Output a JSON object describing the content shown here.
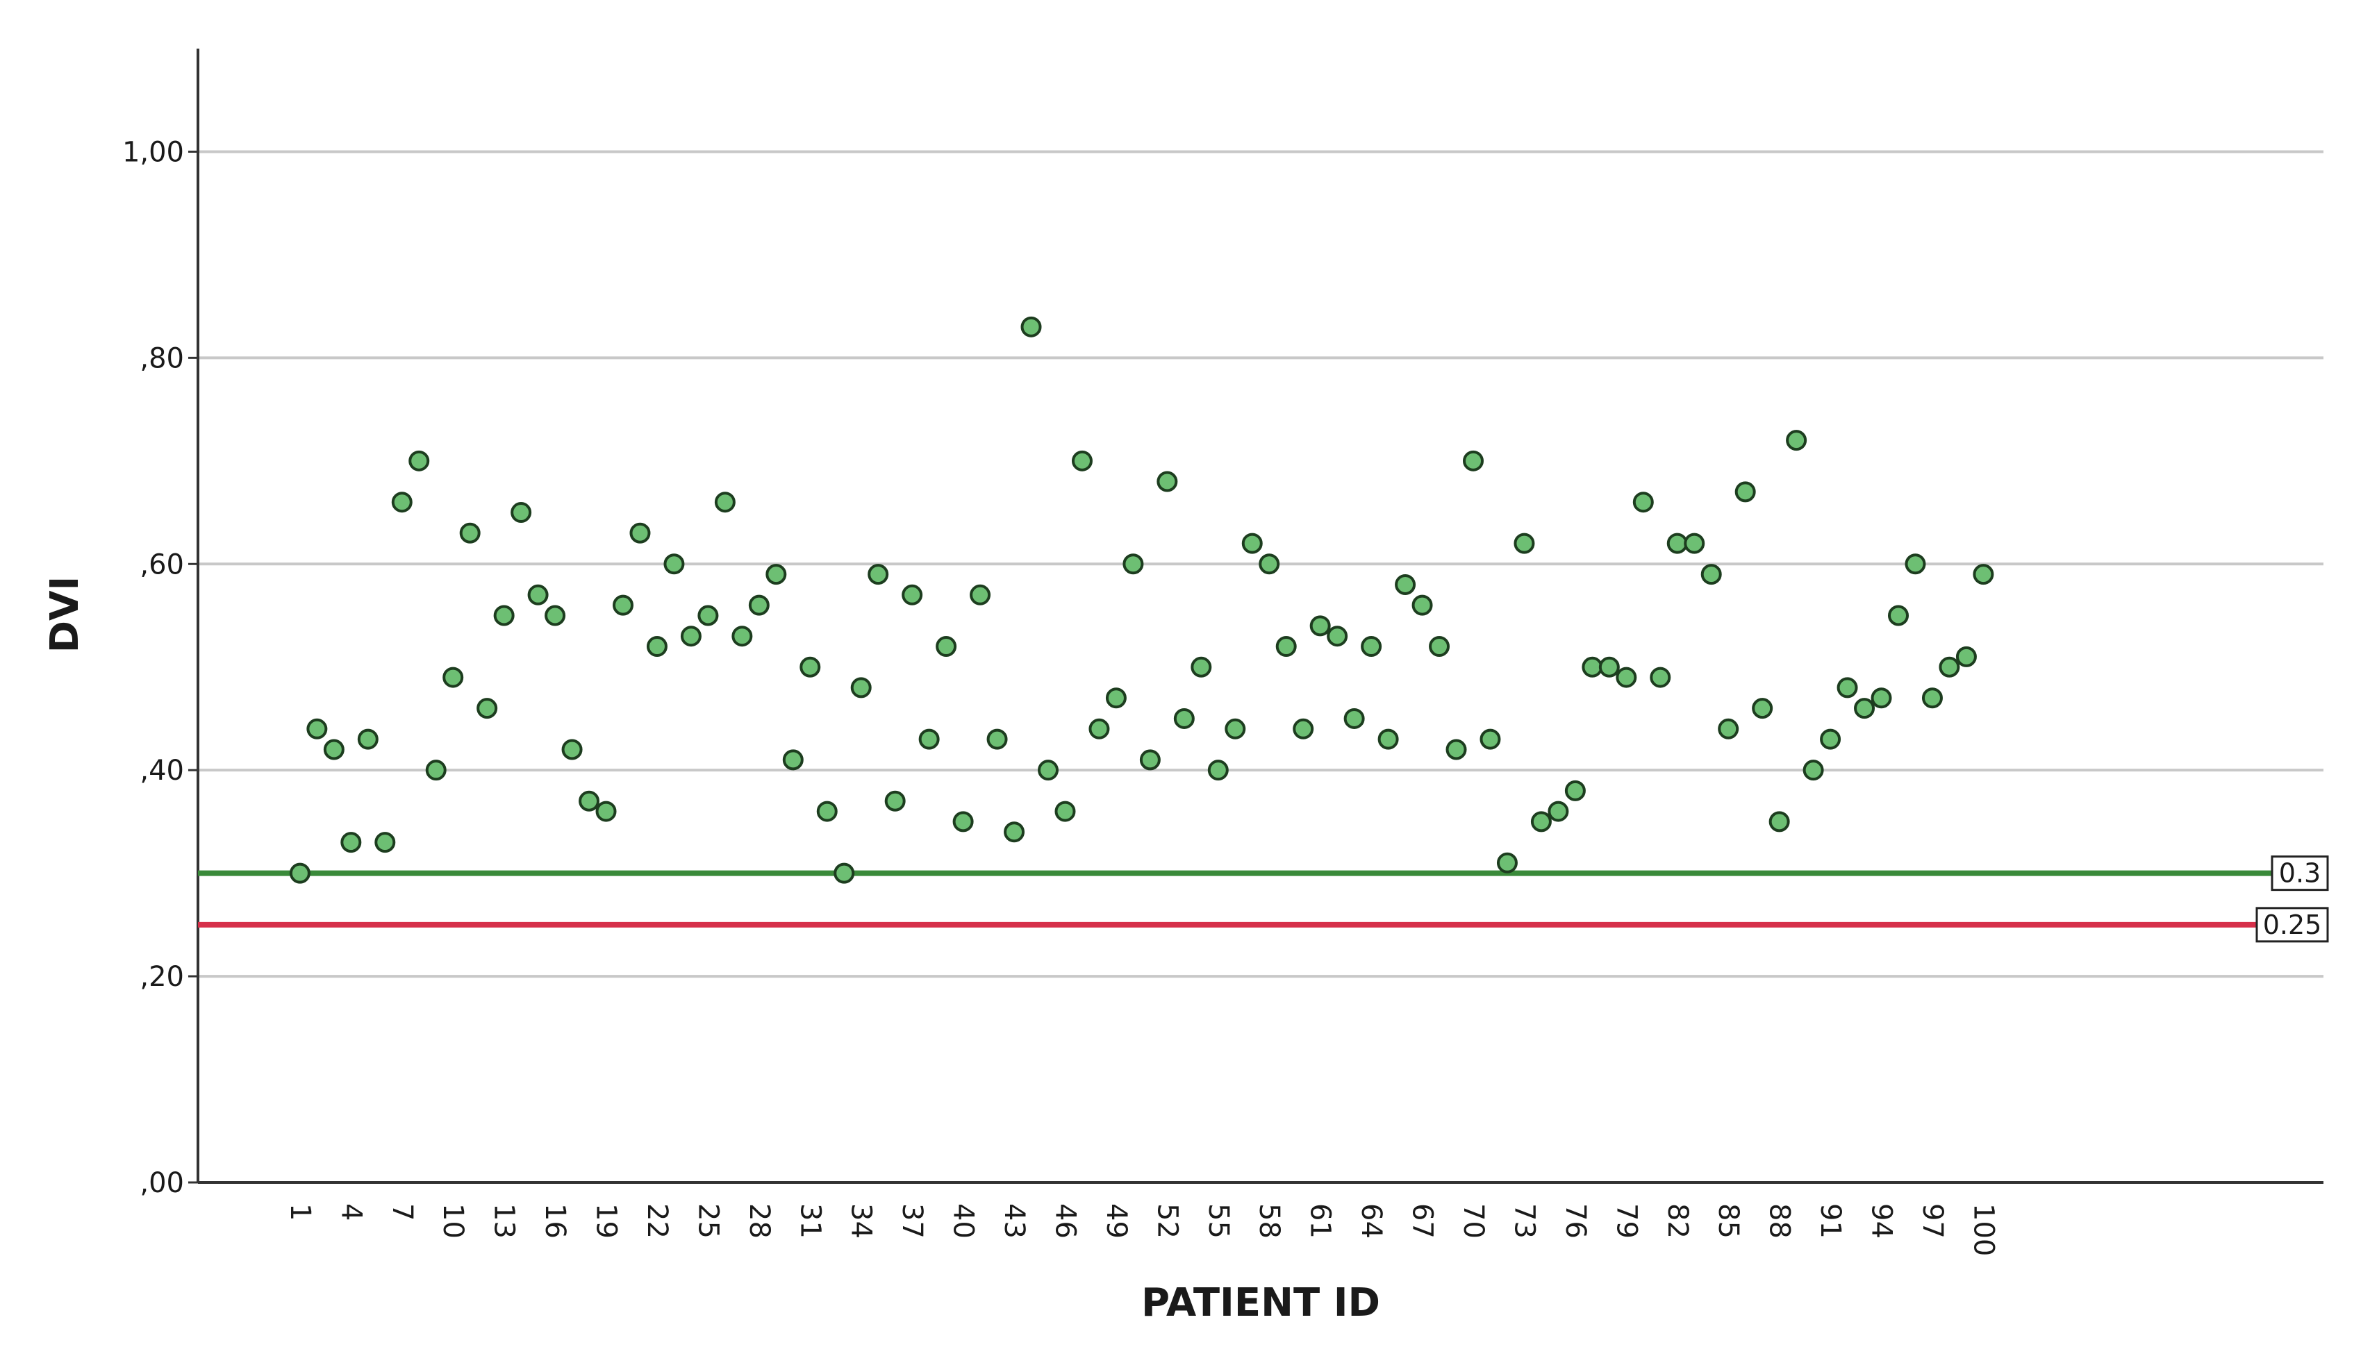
{
  "chart_data": {
    "type": "scatter",
    "xlabel": "PATIENT ID",
    "ylabel": "DVI",
    "ylim": [
      0,
      1.1
    ],
    "xlim": [
      -5,
      120
    ],
    "yticks": [
      {
        "value": 0.0,
        "label": ",00"
      },
      {
        "value": 0.2,
        "label": ",20"
      },
      {
        "value": 0.4,
        "label": ",40"
      },
      {
        "value": 0.6,
        "label": ",60"
      },
      {
        "value": 0.8,
        "label": ",80"
      },
      {
        "value": 1.0,
        "label": "1,00"
      }
    ],
    "xtick_step": 3,
    "xtick_labels": [
      "1",
      "4",
      "7",
      "10",
      "13",
      "16",
      "19",
      "22",
      "25",
      "28",
      "31",
      "34",
      "37",
      "40",
      "43",
      "46",
      "49",
      "52",
      "55",
      "58",
      "61",
      "64",
      "67",
      "70",
      "73",
      "76",
      "79",
      "82",
      "85",
      "88",
      "91",
      "94",
      "97",
      "100"
    ],
    "grid": "horizontal",
    "marker_color": "#6dbf73",
    "marker_edge_color": "#1d3d1f",
    "reference_lines": [
      {
        "value": 0.3,
        "label": "0.3",
        "color": "#3a8a3a"
      },
      {
        "value": 0.25,
        "label": "0.25",
        "color": "#d6304a"
      }
    ],
    "series": [
      {
        "points": [
          [
            1,
            0.3
          ],
          [
            2,
            0.44
          ],
          [
            3,
            0.42
          ],
          [
            4,
            0.33
          ],
          [
            5,
            0.43
          ],
          [
            6,
            0.33
          ],
          [
            7,
            0.66
          ],
          [
            8,
            0.7
          ],
          [
            9,
            0.4
          ],
          [
            10,
            0.49
          ],
          [
            11,
            0.63
          ],
          [
            12,
            0.46
          ],
          [
            13,
            0.55
          ],
          [
            14,
            0.65
          ],
          [
            15,
            0.57
          ],
          [
            16,
            0.55
          ],
          [
            17,
            0.42
          ],
          [
            18,
            0.37
          ],
          [
            19,
            0.36
          ],
          [
            20,
            0.56
          ],
          [
            21,
            0.63
          ],
          [
            22,
            0.52
          ],
          [
            23,
            0.6
          ],
          [
            24,
            0.53
          ],
          [
            25,
            0.55
          ],
          [
            26,
            0.66
          ],
          [
            27,
            0.53
          ],
          [
            28,
            0.56
          ],
          [
            29,
            0.59
          ],
          [
            30,
            0.41
          ],
          [
            31,
            0.5
          ],
          [
            32,
            0.36
          ],
          [
            33,
            0.3
          ],
          [
            34,
            0.48
          ],
          [
            35,
            0.59
          ],
          [
            36,
            0.37
          ],
          [
            37,
            0.57
          ],
          [
            38,
            0.43
          ],
          [
            39,
            0.52
          ],
          [
            40,
            0.35
          ],
          [
            41,
            0.57
          ],
          [
            42,
            0.43
          ],
          [
            43,
            0.34
          ],
          [
            44,
            0.83
          ],
          [
            45,
            0.4
          ],
          [
            46,
            0.36
          ],
          [
            47,
            0.7
          ],
          [
            48,
            0.44
          ],
          [
            49,
            0.47
          ],
          [
            50,
            0.6
          ],
          [
            51,
            0.41
          ],
          [
            52,
            0.68
          ],
          [
            53,
            0.45
          ],
          [
            54,
            0.5
          ],
          [
            55,
            0.4
          ],
          [
            56,
            0.44
          ],
          [
            57,
            0.62
          ],
          [
            58,
            0.6
          ],
          [
            59,
            0.52
          ],
          [
            60,
            0.44
          ],
          [
            61,
            0.54
          ],
          [
            62,
            0.53
          ],
          [
            63,
            0.45
          ],
          [
            64,
            0.52
          ],
          [
            65,
            0.43
          ],
          [
            66,
            0.58
          ],
          [
            67,
            0.56
          ],
          [
            68,
            0.52
          ],
          [
            69,
            0.42
          ],
          [
            70,
            0.7
          ],
          [
            71,
            0.43
          ],
          [
            72,
            0.31
          ],
          [
            73,
            0.62
          ],
          [
            74,
            0.35
          ],
          [
            75,
            0.36
          ],
          [
            76,
            0.38
          ],
          [
            77,
            0.5
          ],
          [
            78,
            0.5
          ],
          [
            79,
            0.49
          ],
          [
            80,
            0.66
          ],
          [
            81,
            0.49
          ],
          [
            82,
            0.62
          ],
          [
            83,
            0.62
          ],
          [
            84,
            0.59
          ],
          [
            85,
            0.44
          ],
          [
            86,
            0.67
          ],
          [
            87,
            0.46
          ],
          [
            88,
            0.35
          ],
          [
            89,
            0.72
          ],
          [
            90,
            0.4
          ],
          [
            91,
            0.43
          ],
          [
            92,
            0.48
          ],
          [
            93,
            0.46
          ],
          [
            94,
            0.47
          ],
          [
            95,
            0.55
          ],
          [
            96,
            0.6
          ],
          [
            97,
            0.47
          ],
          [
            98,
            0.5
          ],
          [
            99,
            0.51
          ],
          [
            100,
            0.59
          ]
        ]
      }
    ]
  }
}
